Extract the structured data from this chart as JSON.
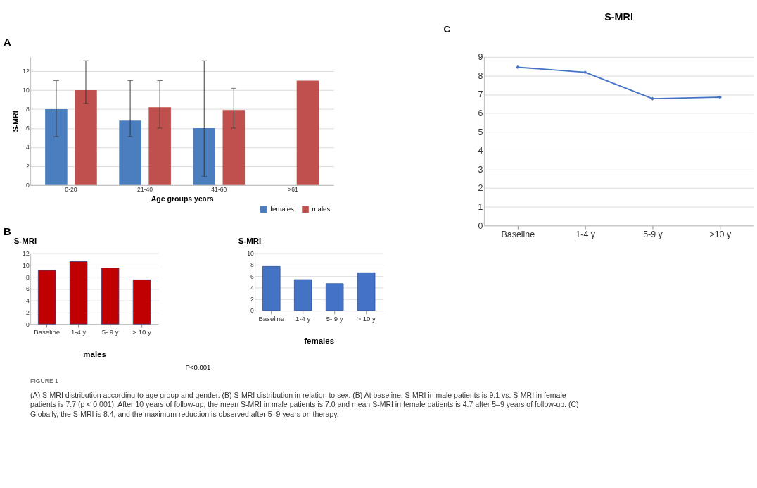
{
  "chart_data": [
    {
      "type": "bar",
      "annotations": [
        "A"
      ],
      "xlabel": "Age groups years",
      "ylabel": "S-MRI",
      "categories": [
        "0-20",
        "21-40",
        "41-60",
        ">61"
      ],
      "series": [
        {
          "name": "females",
          "color": "#4a7ebf",
          "values": [
            8,
            6.8,
            6,
            null
          ],
          "errors": [
            [
              5.1,
              11
            ],
            [
              5.1,
              11
            ],
            [
              0.9,
              13.1
            ],
            null
          ]
        },
        {
          "name": "males",
          "color": "#c0504d",
          "values": [
            10,
            8.2,
            7.9,
            11
          ],
          "errors": [
            [
              8.6,
              13.1
            ],
            [
              6,
              11
            ],
            [
              6,
              10.2
            ],
            null
          ]
        }
      ],
      "ylim": [
        0,
        13.5
      ],
      "yticks": [
        0,
        2,
        4,
        6,
        8,
        10,
        12
      ],
      "grid": "y",
      "legend": "bottom right"
    },
    {
      "type": "bar",
      "annotations": [
        "B",
        "P<0.001"
      ],
      "xlabel": "males",
      "ylabel": "S-MRI",
      "categories": [
        "Baseline",
        "1-4 y",
        "5- 9 y",
        "> 10 y"
      ],
      "values": [
        9.1,
        10.6,
        9.5,
        7.5
      ],
      "color": "#c00000",
      "ylim": [
        0,
        12
      ],
      "yticks": [
        0,
        2,
        4,
        6,
        8,
        10,
        12
      ],
      "grid": "y"
    },
    {
      "type": "bar",
      "xlabel": "females",
      "ylabel": "S-MRI",
      "categories": [
        "Baseline",
        "1-4 y",
        "5- 9 y",
        "> 10 y"
      ],
      "values": [
        7.7,
        5.4,
        4.7,
        6.6
      ],
      "color": "#4472c4",
      "ylim": [
        0,
        10
      ],
      "yticks": [
        0,
        2,
        4,
        6,
        8,
        10
      ],
      "grid": "y"
    },
    {
      "type": "line",
      "title": "S-MRI",
      "annotations": [
        "C"
      ],
      "categories": [
        "Baseline",
        "1-4 y",
        "5-9 y",
        ">10 y"
      ],
      "values": [
        8.45,
        8.18,
        6.77,
        6.85
      ],
      "color": "#4472c4",
      "marker": "diamond",
      "ylim": [
        0,
        9
      ],
      "yticks": [
        0,
        1,
        2,
        3,
        4,
        5,
        6,
        7,
        8,
        9
      ],
      "grid": "y"
    },
    {
      "type": "other",
      "title": "FIGURE 1",
      "annotations": [
        "(A) S-MRI distribution according to age group and gender. (B) S-MRI distribution in relation to sex. (B) At baseline, S-MRI in male patients is 9.1 vs. S-MRI in female patients is 7.7 (p < 0.001). After 10 years of follow-up, the mean S-MRI in male patients is 7.0 and mean S-MRI in female patients is 4.7 after 5–9 years of follow-up. (C) Globally, the S-MRI is 8.4, and the maximum reduction is observed after 5–9 years on therapy."
      ]
    }
  ]
}
